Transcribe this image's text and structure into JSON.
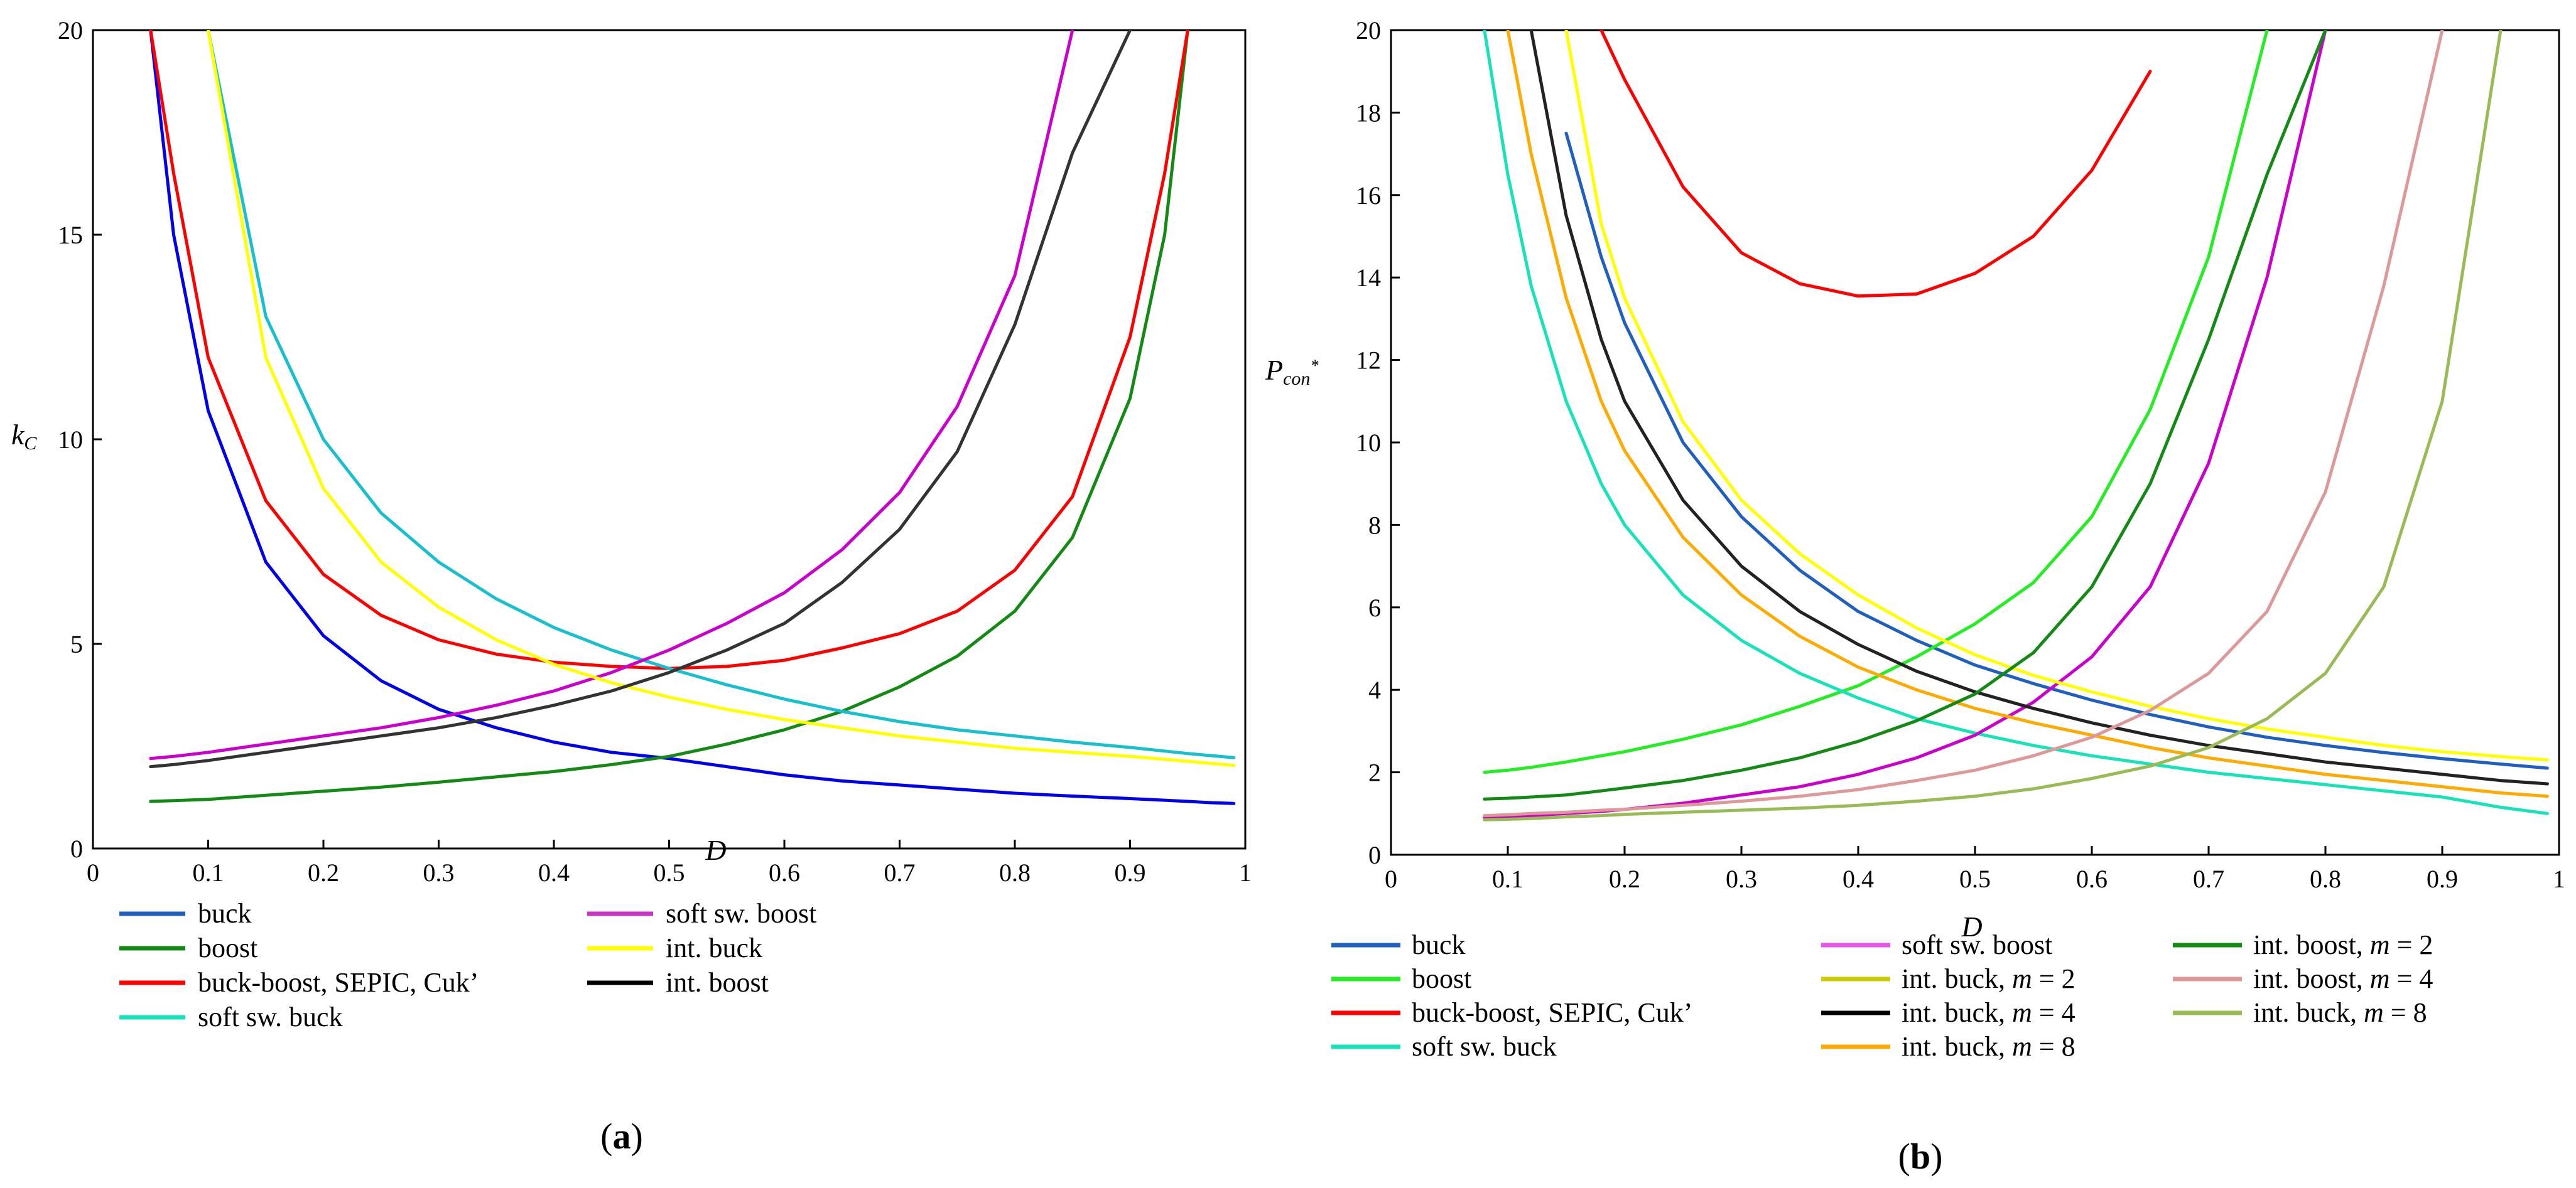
{
  "chart_data": [
    {
      "type": "line",
      "panel": "a",
      "caption": "(a)",
      "xlabel": "D",
      "ylabel": "kC",
      "xlim": [
        0,
        1
      ],
      "ylim": [
        0,
        20
      ],
      "x_ticks": [
        "0",
        "0.1",
        "0.2",
        "0.3",
        "0.4",
        "0.5",
        "0.6",
        "0.7",
        "0.8",
        "0.9",
        "1"
      ],
      "y_ticks": [
        "0",
        "5",
        "10",
        "15",
        "20"
      ],
      "x": [
        0.05,
        0.07,
        0.1,
        0.15,
        0.2,
        0.25,
        0.3,
        0.35,
        0.4,
        0.45,
        0.5,
        0.55,
        0.6,
        0.65,
        0.7,
        0.75,
        0.8,
        0.85,
        0.9,
        0.93,
        0.95,
        0.97,
        0.99
      ],
      "series": [
        {
          "name": "buck",
          "color": "#0000ee",
          "values": [
            20,
            15,
            10.7,
            7.0,
            5.2,
            4.1,
            3.4,
            2.95,
            2.6,
            2.35,
            2.2,
            2.0,
            1.8,
            1.65,
            1.55,
            1.45,
            1.35,
            1.28,
            1.22,
            1.18,
            1.15,
            1.12,
            1.1
          ]
        },
        {
          "name": "boost",
          "color": "#138a13",
          "values": [
            1.15,
            1.17,
            1.2,
            1.3,
            1.4,
            1.5,
            1.62,
            1.75,
            1.88,
            2.05,
            2.25,
            2.55,
            2.9,
            3.35,
            3.95,
            4.7,
            5.8,
            7.6,
            11.0,
            15.0,
            20,
            null,
            null
          ]
        },
        {
          "name": "buck-boost, SEPIC, Cuk’",
          "color": "#ff0000",
          "values": [
            20,
            16.5,
            12.0,
            8.5,
            6.7,
            5.7,
            5.1,
            4.75,
            4.55,
            4.45,
            4.4,
            4.45,
            4.6,
            4.9,
            5.25,
            5.8,
            6.8,
            8.6,
            12.5,
            16.5,
            20,
            null,
            null
          ]
        },
        {
          "name": "soft sw. buck",
          "color": "#17bfcf",
          "values": [
            null,
            null,
            20,
            13.0,
            10.0,
            8.2,
            7.0,
            6.1,
            5.4,
            4.85,
            4.4,
            4.0,
            3.65,
            3.35,
            3.1,
            2.9,
            2.75,
            2.6,
            2.47,
            2.38,
            2.32,
            2.27,
            2.22
          ]
        },
        {
          "name": "soft sw. boost",
          "color": "#cc00cc",
          "values": [
            2.2,
            2.25,
            2.35,
            2.55,
            2.75,
            2.95,
            3.2,
            3.5,
            3.85,
            4.3,
            4.85,
            5.5,
            6.25,
            7.3,
            8.7,
            10.8,
            14.0,
            20,
            null,
            null,
            null,
            null,
            null
          ]
        },
        {
          "name": "int. buck",
          "color": "#ffff00",
          "values": [
            null,
            null,
            20,
            12.0,
            8.8,
            7.0,
            5.9,
            5.1,
            4.5,
            4.05,
            3.7,
            3.4,
            3.15,
            2.95,
            2.75,
            2.6,
            2.45,
            2.35,
            2.25,
            2.18,
            2.13,
            2.08,
            2.03
          ]
        },
        {
          "name": "int. boost",
          "color": "#333333",
          "values": [
            2.0,
            2.05,
            2.15,
            2.35,
            2.55,
            2.75,
            2.95,
            3.2,
            3.5,
            3.85,
            4.3,
            4.85,
            5.5,
            6.5,
            7.8,
            9.7,
            12.8,
            17.0,
            20,
            null,
            null,
            null,
            null
          ]
        }
      ],
      "legend": [
        {
          "label": "buck",
          "color": "#1f5fbf",
          "parts": [
            {
              "t": "buck"
            }
          ]
        },
        {
          "label": "boost",
          "color": "#138a13",
          "parts": [
            {
              "t": "boost"
            }
          ]
        },
        {
          "label": "buck-boost, SEPIC, Cuk’",
          "color": "#ff0000",
          "parts": [
            {
              "t": "buck-boost, SEPIC, Cuk’"
            }
          ]
        },
        {
          "label": "soft sw. buck",
          "color": "#17e3b8",
          "parts": [
            {
              "t": "soft sw. buck"
            }
          ]
        },
        {
          "label": "soft sw. boost",
          "color": "#cc33cc",
          "parts": [
            {
              "t": "soft sw. boost"
            }
          ]
        },
        {
          "label": "int. buck",
          "color": "#ffff00",
          "parts": [
            {
              "t": "int. buck"
            }
          ]
        },
        {
          "label": "int. boost",
          "color": "#000000",
          "parts": [
            {
              "t": "int. boost"
            }
          ]
        }
      ]
    },
    {
      "type": "line",
      "panel": "b",
      "caption": "(b)",
      "xlabel": "D",
      "ylabel": "Pcon*",
      "xlim": [
        0,
        1
      ],
      "ylim": [
        0,
        20
      ],
      "x_ticks": [
        "0",
        "0.1",
        "0.2",
        "0.3",
        "0.4",
        "0.5",
        "0.6",
        "0.7",
        "0.8",
        "0.9",
        "1"
      ],
      "y_ticks": [
        "0",
        "2",
        "4",
        "6",
        "8",
        "10",
        "12",
        "14",
        "16",
        "18",
        "20"
      ],
      "x": [
        0.08,
        0.1,
        0.12,
        0.15,
        0.18,
        0.2,
        0.25,
        0.3,
        0.35,
        0.4,
        0.45,
        0.5,
        0.55,
        0.6,
        0.65,
        0.7,
        0.75,
        0.8,
        0.85,
        0.9,
        0.95,
        0.99
      ],
      "series": [
        {
          "name": "buck",
          "color": "#1f5fbf",
          "values": [
            null,
            null,
            null,
            17.5,
            14.5,
            12.9,
            10.0,
            8.2,
            6.9,
            5.9,
            5.2,
            4.6,
            4.15,
            3.75,
            3.4,
            3.1,
            2.85,
            2.65,
            2.48,
            2.33,
            2.2,
            2.1
          ]
        },
        {
          "name": "boost",
          "color": "#22ee22",
          "values": [
            2.0,
            2.05,
            2.12,
            2.25,
            2.4,
            2.5,
            2.8,
            3.15,
            3.6,
            4.1,
            4.8,
            5.6,
            6.6,
            8.2,
            10.8,
            14.5,
            20,
            null,
            null,
            null,
            null,
            null
          ]
        },
        {
          "name": "buck-boost, SEPIC, Cuk’",
          "color": "#ff0000",
          "values": [
            null,
            null,
            null,
            null,
            20,
            18.8,
            16.2,
            14.6,
            13.85,
            13.55,
            13.6,
            14.1,
            15.0,
            16.6,
            19.0,
            null,
            null,
            null,
            null,
            null,
            null,
            null
          ]
        },
        {
          "name": "soft sw. buck",
          "color": "#17e3b8",
          "values": [
            20,
            16.5,
            13.8,
            11.0,
            9.0,
            8.0,
            6.3,
            5.2,
            4.4,
            3.8,
            3.3,
            2.95,
            2.65,
            2.4,
            2.2,
            2.0,
            1.85,
            1.7,
            1.55,
            1.4,
            1.15,
            1.0
          ]
        },
        {
          "name": "soft sw. boost",
          "color": "#cc00cc",
          "values": [
            0.9,
            0.92,
            0.95,
            1.0,
            1.05,
            1.1,
            1.25,
            1.45,
            1.65,
            1.95,
            2.35,
            2.9,
            3.7,
            4.8,
            6.5,
            9.5,
            14.0,
            20,
            null,
            null,
            null,
            null
          ]
        },
        {
          "name": "int. buck, m = 2",
          "color": "#ffff00",
          "values": [
            null,
            null,
            null,
            20,
            15.3,
            13.5,
            10.5,
            8.6,
            7.3,
            6.3,
            5.5,
            4.85,
            4.35,
            3.95,
            3.6,
            3.3,
            3.05,
            2.85,
            2.65,
            2.5,
            2.38,
            2.3
          ]
        },
        {
          "name": "int. buck, m = 4",
          "color": "#222222",
          "values": [
            null,
            null,
            20,
            15.5,
            12.5,
            11.0,
            8.6,
            7.0,
            5.9,
            5.1,
            4.45,
            3.95,
            3.55,
            3.2,
            2.9,
            2.65,
            2.45,
            2.25,
            2.1,
            1.95,
            1.8,
            1.72
          ]
        },
        {
          "name": "int. buck, m = 8",
          "color": "#ffaa00",
          "values": [
            null,
            20,
            17.0,
            13.5,
            11.0,
            9.8,
            7.7,
            6.3,
            5.3,
            4.55,
            4.0,
            3.55,
            3.2,
            2.9,
            2.6,
            2.35,
            2.15,
            1.95,
            1.8,
            1.65,
            1.5,
            1.42
          ]
        },
        {
          "name": "int. boost, m = 2",
          "color": "#138a13",
          "values": [
            1.35,
            1.37,
            1.4,
            1.45,
            1.55,
            1.62,
            1.8,
            2.05,
            2.35,
            2.75,
            3.25,
            3.9,
            4.9,
            6.5,
            9.0,
            12.5,
            16.5,
            20,
            null,
            null,
            null,
            null
          ]
        },
        {
          "name": "int. boost, m = 4",
          "color": "#dd9999",
          "values": [
            0.95,
            0.97,
            1.0,
            1.03,
            1.08,
            1.1,
            1.2,
            1.3,
            1.42,
            1.58,
            1.8,
            2.05,
            2.4,
            2.85,
            3.5,
            4.4,
            5.9,
            8.8,
            13.8,
            20,
            null,
            null
          ]
        },
        {
          "name": "int. buck, m = 8",
          "color": "#99bb55",
          "values": [
            0.85,
            0.86,
            0.88,
            0.92,
            0.95,
            0.98,
            1.03,
            1.08,
            1.13,
            1.2,
            1.3,
            1.42,
            1.6,
            1.85,
            2.15,
            2.6,
            3.3,
            4.4,
            6.5,
            11.0,
            20,
            null
          ]
        }
      ],
      "legend": [
        {
          "label": "buck",
          "color": "#1f5fbf",
          "parts": [
            {
              "t": "buck"
            }
          ]
        },
        {
          "label": "boost",
          "color": "#22ee22",
          "parts": [
            {
              "t": "boost"
            }
          ]
        },
        {
          "label": "buck-boost, SEPIC, Cuk’",
          "color": "#ff0000",
          "parts": [
            {
              "t": "buck-boost, SEPIC, Cuk’"
            }
          ]
        },
        {
          "label": "soft sw. buck",
          "color": "#17e3b8",
          "parts": [
            {
              "t": "soft sw. buck"
            }
          ]
        },
        {
          "label": "soft sw. boost",
          "color": "#e855e8",
          "parts": [
            {
              "t": "soft sw. boost"
            }
          ]
        },
        {
          "label": "int. buck, m = 2",
          "color": "#cccc00",
          "parts": [
            {
              "t": "int. buck, "
            },
            {
              "t": "m",
              "i": true
            },
            {
              "t": " = 2"
            }
          ]
        },
        {
          "label": "int. buck, m = 4",
          "color": "#000000",
          "parts": [
            {
              "t": "int. buck, "
            },
            {
              "t": "m",
              "i": true
            },
            {
              "t": " = 4"
            }
          ]
        },
        {
          "label": "int. buck, m = 8",
          "color": "#ffaa00",
          "parts": [
            {
              "t": "int. buck, "
            },
            {
              "t": "m",
              "i": true
            },
            {
              "t": " = 8"
            }
          ]
        },
        {
          "label": "int. boost, m = 2",
          "color": "#138a13",
          "parts": [
            {
              "t": "int. boost, "
            },
            {
              "t": "m",
              "i": true
            },
            {
              "t": " = 2"
            }
          ]
        },
        {
          "label": "int. boost, m = 4",
          "color": "#dd9999",
          "parts": [
            {
              "t": "int. boost, "
            },
            {
              "t": "m",
              "i": true
            },
            {
              "t": " = 4"
            }
          ]
        },
        {
          "label": "int. buck, m = 8",
          "color": "#99bb55",
          "parts": [
            {
              "t": "int. buck, "
            },
            {
              "t": "m",
              "i": true
            },
            {
              "t": " = 8"
            }
          ]
        }
      ]
    }
  ]
}
